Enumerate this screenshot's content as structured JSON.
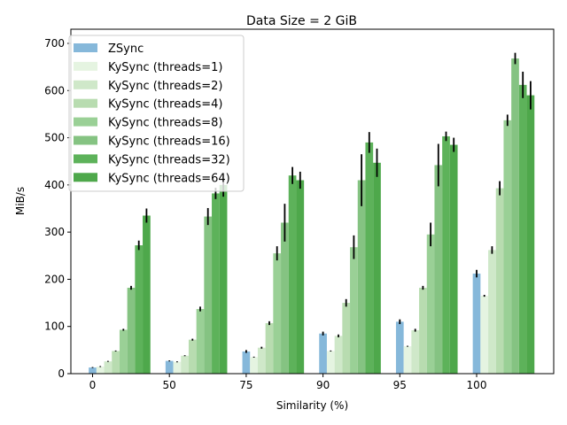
{
  "chart_data": {
    "type": "bar",
    "title": "Data Size = 2 GiB",
    "xlabel": "Similarity (%)",
    "ylabel": "MiB/s",
    "categories": [
      "0",
      "50",
      "75",
      "90",
      "95",
      "100"
    ],
    "ylim": [
      0,
      730
    ],
    "yticks": [
      0,
      100,
      200,
      300,
      400,
      500,
      600,
      700
    ],
    "grid": false,
    "legend_position": "top-left",
    "series": [
      {
        "name": "ZSync",
        "color": "#86b8da",
        "values": [
          13,
          27,
          47,
          85,
          110,
          212
        ],
        "errors": [
          1,
          1,
          3,
          4,
          5,
          8
        ]
      },
      {
        "name": "KySync (threads=1)",
        "color": "#e5f4e1",
        "values": [
          15,
          25,
          35,
          48,
          58,
          165
        ],
        "errors": [
          1,
          1,
          1,
          1,
          1,
          2
        ]
      },
      {
        "name": "KySync (threads=2)",
        "color": "#cfe8c9",
        "values": [
          26,
          38,
          55,
          80,
          92,
          262
        ],
        "errors": [
          1,
          1,
          2,
          3,
          3,
          8
        ]
      },
      {
        "name": "KySync (threads=4)",
        "color": "#b8dcb0",
        "values": [
          48,
          72,
          107,
          150,
          182,
          393
        ],
        "errors": [
          1,
          2,
          4,
          8,
          4,
          15
        ]
      },
      {
        "name": "KySync (threads=8)",
        "color": "#9ad096",
        "values": [
          93,
          137,
          255,
          268,
          295,
          537
        ],
        "errors": [
          2,
          5,
          15,
          25,
          25,
          12
        ]
      },
      {
        "name": "KySync (threads=16)",
        "color": "#85c382",
        "values": [
          182,
          333,
          320,
          410,
          442,
          668
        ],
        "errors": [
          4,
          18,
          40,
          55,
          45,
          12
        ]
      },
      {
        "name": "KySync (threads=32)",
        "color": "#5db25a",
        "values": [
          272,
          382,
          420,
          490,
          503,
          612
        ],
        "errors": [
          10,
          12,
          18,
          22,
          10,
          28
        ]
      },
      {
        "name": "KySync (threads=64)",
        "color": "#4ea84b",
        "values": [
          335,
          400,
          410,
          447,
          485,
          590
        ],
        "errors": [
          15,
          25,
          18,
          30,
          15,
          30
        ]
      }
    ]
  }
}
